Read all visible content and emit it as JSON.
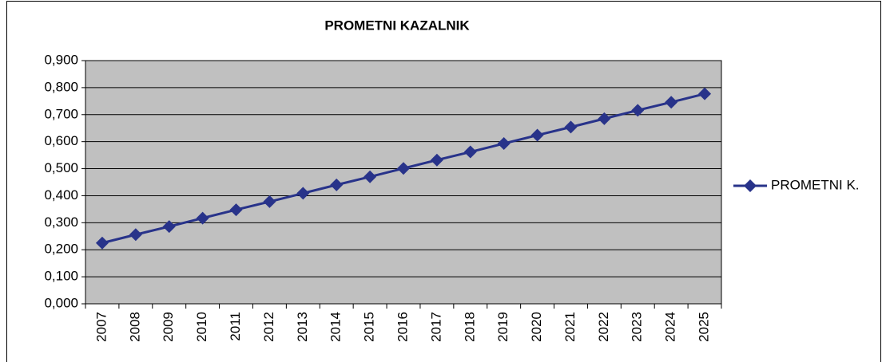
{
  "chart_data": {
    "type": "line",
    "title": "PROMETNI KAZALNIK",
    "categories": [
      "2007",
      "2008",
      "2009",
      "2010",
      "2011",
      "2012",
      "2013",
      "2014",
      "2015",
      "2016",
      "2017",
      "2018",
      "2019",
      "2020",
      "2021",
      "2022",
      "2023",
      "2024",
      "2025"
    ],
    "series": [
      {
        "name": "PROMETNI K.",
        "color": "#28338a",
        "values": [
          0.225,
          0.256,
          0.286,
          0.317,
          0.348,
          0.378,
          0.409,
          0.44,
          0.47,
          0.501,
          0.532,
          0.562,
          0.593,
          0.624,
          0.654,
          0.685,
          0.716,
          0.746,
          0.777
        ]
      }
    ],
    "ylim": [
      0,
      0.9
    ],
    "yticks": [
      {
        "value": 0,
        "label": "0,000"
      },
      {
        "value": 0.1,
        "label": "0,100"
      },
      {
        "value": 0.2,
        "label": "0,200"
      },
      {
        "value": 0.3,
        "label": "0,300"
      },
      {
        "value": 0.4,
        "label": "0,400"
      },
      {
        "value": 0.5,
        "label": "0,500"
      },
      {
        "value": 0.6,
        "label": "0,600"
      },
      {
        "value": 0.7,
        "label": "0,700"
      },
      {
        "value": 0.8,
        "label": "0,800"
      },
      {
        "value": 0.9,
        "label": "0,900"
      }
    ],
    "grid": true,
    "legend": "right"
  }
}
